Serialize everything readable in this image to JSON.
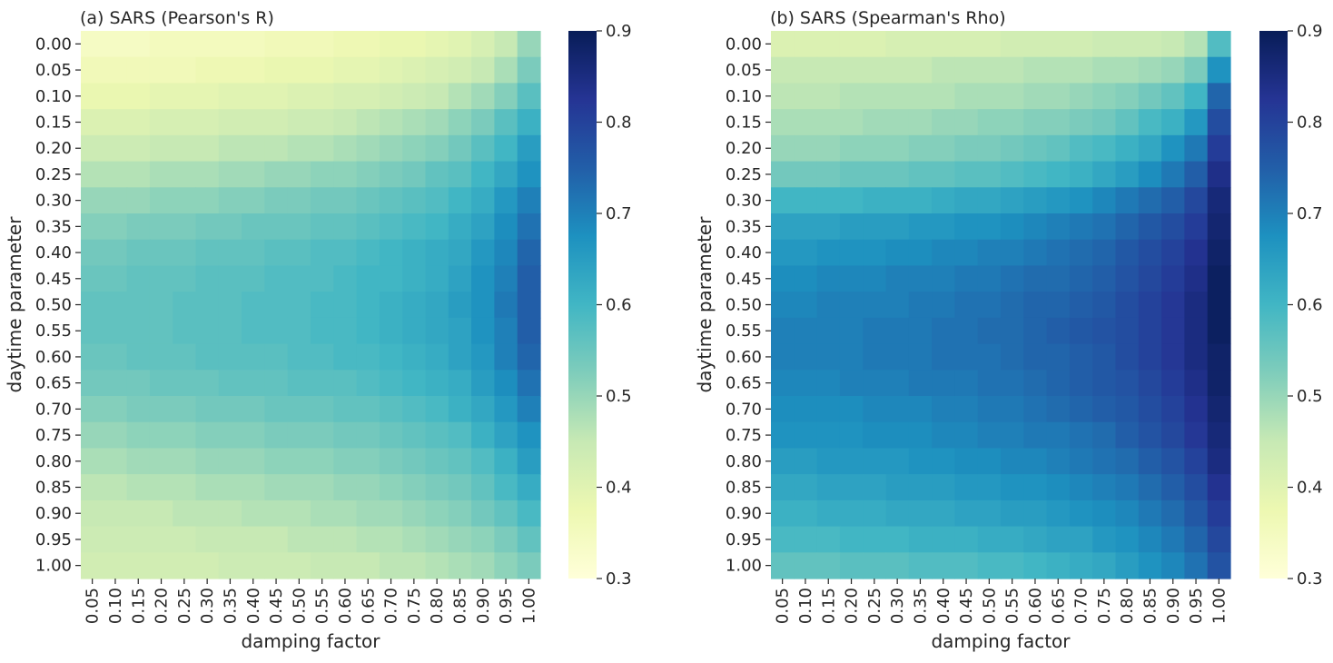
{
  "chart_data": [
    {
      "type": "heatmap",
      "title": "(a) SARS (Pearson's R)",
      "xlabel": "damping factor",
      "ylabel": "daytime parameter",
      "x_categories": [
        "0.05",
        "0.10",
        "0.15",
        "0.20",
        "0.25",
        "0.30",
        "0.35",
        "0.40",
        "0.45",
        "0.50",
        "0.55",
        "0.60",
        "0.65",
        "0.70",
        "0.75",
        "0.80",
        "0.85",
        "0.90",
        "0.95",
        "1.00"
      ],
      "y_categories": [
        "0.00",
        "0.05",
        "0.10",
        "0.15",
        "0.20",
        "0.25",
        "0.30",
        "0.35",
        "0.40",
        "0.45",
        "0.50",
        "0.55",
        "0.60",
        "0.65",
        "0.70",
        "0.75",
        "0.80",
        "0.85",
        "0.90",
        "0.95",
        "1.00"
      ],
      "color_range": [
        0.3,
        0.9
      ],
      "colormap": "YlGnBu",
      "colorbar_ticks": [
        "0.3",
        "0.4",
        "0.5",
        "0.6",
        "0.7",
        "0.8",
        "0.9"
      ],
      "values": [
        [
          0.34,
          0.34,
          0.34,
          0.35,
          0.35,
          0.35,
          0.35,
          0.35,
          0.36,
          0.36,
          0.36,
          0.37,
          0.37,
          0.38,
          0.38,
          0.39,
          0.4,
          0.42,
          0.45,
          0.5
        ],
        [
          0.36,
          0.36,
          0.36,
          0.36,
          0.36,
          0.37,
          0.37,
          0.37,
          0.38,
          0.38,
          0.38,
          0.39,
          0.39,
          0.4,
          0.41,
          0.42,
          0.43,
          0.45,
          0.48,
          0.53
        ],
        [
          0.38,
          0.38,
          0.38,
          0.39,
          0.39,
          0.39,
          0.4,
          0.4,
          0.4,
          0.41,
          0.41,
          0.42,
          0.42,
          0.43,
          0.44,
          0.45,
          0.47,
          0.49,
          0.52,
          0.57
        ],
        [
          0.41,
          0.41,
          0.41,
          0.42,
          0.42,
          0.42,
          0.43,
          0.43,
          0.43,
          0.44,
          0.44,
          0.45,
          0.46,
          0.47,
          0.48,
          0.49,
          0.51,
          0.53,
          0.57,
          0.61
        ],
        [
          0.44,
          0.44,
          0.44,
          0.45,
          0.45,
          0.45,
          0.46,
          0.46,
          0.46,
          0.47,
          0.47,
          0.48,
          0.49,
          0.5,
          0.51,
          0.52,
          0.54,
          0.57,
          0.6,
          0.65
        ],
        [
          0.47,
          0.47,
          0.47,
          0.48,
          0.48,
          0.48,
          0.49,
          0.49,
          0.5,
          0.5,
          0.51,
          0.51,
          0.52,
          0.53,
          0.54,
          0.56,
          0.57,
          0.6,
          0.63,
          0.67
        ],
        [
          0.5,
          0.5,
          0.5,
          0.51,
          0.51,
          0.51,
          0.52,
          0.52,
          0.53,
          0.53,
          0.54,
          0.54,
          0.55,
          0.56,
          0.57,
          0.58,
          0.6,
          0.62,
          0.66,
          0.7
        ],
        [
          0.52,
          0.52,
          0.53,
          0.53,
          0.53,
          0.54,
          0.54,
          0.55,
          0.55,
          0.55,
          0.56,
          0.56,
          0.57,
          0.58,
          0.59,
          0.6,
          0.62,
          0.64,
          0.68,
          0.72
        ],
        [
          0.54,
          0.54,
          0.55,
          0.55,
          0.55,
          0.56,
          0.56,
          0.56,
          0.57,
          0.57,
          0.58,
          0.58,
          0.59,
          0.6,
          0.61,
          0.62,
          0.63,
          0.66,
          0.69,
          0.74
        ],
        [
          0.55,
          0.55,
          0.56,
          0.56,
          0.56,
          0.57,
          0.57,
          0.57,
          0.58,
          0.58,
          0.58,
          0.59,
          0.6,
          0.6,
          0.61,
          0.62,
          0.64,
          0.67,
          0.7,
          0.75
        ],
        [
          0.56,
          0.56,
          0.56,
          0.56,
          0.57,
          0.57,
          0.57,
          0.58,
          0.58,
          0.58,
          0.59,
          0.59,
          0.6,
          0.61,
          0.62,
          0.63,
          0.65,
          0.67,
          0.71,
          0.75
        ],
        [
          0.56,
          0.56,
          0.56,
          0.56,
          0.57,
          0.57,
          0.57,
          0.58,
          0.58,
          0.58,
          0.59,
          0.59,
          0.6,
          0.61,
          0.62,
          0.63,
          0.64,
          0.67,
          0.7,
          0.75
        ],
        [
          0.55,
          0.55,
          0.56,
          0.56,
          0.56,
          0.57,
          0.57,
          0.57,
          0.57,
          0.58,
          0.58,
          0.59,
          0.59,
          0.6,
          0.61,
          0.62,
          0.64,
          0.66,
          0.7,
          0.74
        ],
        [
          0.54,
          0.54,
          0.54,
          0.55,
          0.55,
          0.55,
          0.56,
          0.56,
          0.56,
          0.57,
          0.57,
          0.57,
          0.58,
          0.59,
          0.6,
          0.61,
          0.62,
          0.65,
          0.68,
          0.72
        ],
        [
          0.52,
          0.52,
          0.53,
          0.53,
          0.53,
          0.54,
          0.54,
          0.54,
          0.55,
          0.55,
          0.55,
          0.56,
          0.56,
          0.57,
          0.58,
          0.59,
          0.61,
          0.63,
          0.66,
          0.7
        ],
        [
          0.5,
          0.5,
          0.51,
          0.51,
          0.51,
          0.52,
          0.52,
          0.52,
          0.53,
          0.53,
          0.53,
          0.54,
          0.54,
          0.55,
          0.56,
          0.57,
          0.58,
          0.61,
          0.64,
          0.67
        ],
        [
          0.48,
          0.48,
          0.49,
          0.49,
          0.49,
          0.5,
          0.5,
          0.5,
          0.51,
          0.51,
          0.51,
          0.52,
          0.52,
          0.53,
          0.54,
          0.55,
          0.56,
          0.58,
          0.61,
          0.65
        ],
        [
          0.46,
          0.46,
          0.47,
          0.47,
          0.47,
          0.48,
          0.48,
          0.48,
          0.49,
          0.49,
          0.49,
          0.5,
          0.5,
          0.51,
          0.52,
          0.53,
          0.54,
          0.56,
          0.59,
          0.62
        ],
        [
          0.45,
          0.45,
          0.45,
          0.45,
          0.46,
          0.46,
          0.46,
          0.47,
          0.47,
          0.47,
          0.48,
          0.48,
          0.49,
          0.49,
          0.5,
          0.51,
          0.52,
          0.54,
          0.56,
          0.59
        ],
        [
          0.44,
          0.44,
          0.44,
          0.44,
          0.44,
          0.45,
          0.45,
          0.45,
          0.45,
          0.46,
          0.46,
          0.46,
          0.47,
          0.47,
          0.48,
          0.49,
          0.5,
          0.51,
          0.53,
          0.56
        ],
        [
          0.43,
          0.43,
          0.43,
          0.43,
          0.43,
          0.43,
          0.44,
          0.44,
          0.44,
          0.44,
          0.45,
          0.45,
          0.45,
          0.46,
          0.46,
          0.47,
          0.48,
          0.49,
          0.51,
          0.53
        ]
      ]
    },
    {
      "type": "heatmap",
      "title": "(b) SARS (Spearman's Rho)",
      "xlabel": "damping factor",
      "ylabel": "daytime parameter",
      "x_categories": [
        "0.05",
        "0.10",
        "0.15",
        "0.20",
        "0.25",
        "0.30",
        "0.35",
        "0.40",
        "0.45",
        "0.50",
        "0.55",
        "0.60",
        "0.65",
        "0.70",
        "0.75",
        "0.80",
        "0.85",
        "0.90",
        "0.95",
        "1.00"
      ],
      "y_categories": [
        "0.00",
        "0.05",
        "0.10",
        "0.15",
        "0.20",
        "0.25",
        "0.30",
        "0.35",
        "0.40",
        "0.45",
        "0.50",
        "0.55",
        "0.60",
        "0.65",
        "0.70",
        "0.75",
        "0.80",
        "0.85",
        "0.90",
        "0.95",
        "1.00"
      ],
      "color_range": [
        0.3,
        0.9
      ],
      "colormap": "YlGnBu",
      "colorbar_ticks": [
        "0.3",
        "0.4",
        "0.5",
        "0.6",
        "0.7",
        "0.8",
        "0.9"
      ],
      "values": [
        [
          0.41,
          0.41,
          0.41,
          0.41,
          0.41,
          0.42,
          0.42,
          0.42,
          0.42,
          0.42,
          0.43,
          0.43,
          0.43,
          0.43,
          0.44,
          0.44,
          0.44,
          0.45,
          0.47,
          0.58
        ],
        [
          0.45,
          0.45,
          0.45,
          0.45,
          0.45,
          0.45,
          0.45,
          0.46,
          0.46,
          0.46,
          0.46,
          0.47,
          0.47,
          0.47,
          0.48,
          0.48,
          0.49,
          0.5,
          0.53,
          0.67
        ],
        [
          0.46,
          0.46,
          0.46,
          0.47,
          0.47,
          0.47,
          0.47,
          0.47,
          0.48,
          0.48,
          0.48,
          0.49,
          0.49,
          0.5,
          0.51,
          0.52,
          0.54,
          0.56,
          0.6,
          0.74
        ],
        [
          0.48,
          0.48,
          0.48,
          0.48,
          0.49,
          0.49,
          0.49,
          0.5,
          0.5,
          0.51,
          0.51,
          0.52,
          0.52,
          0.53,
          0.54,
          0.56,
          0.59,
          0.61,
          0.66,
          0.78
        ],
        [
          0.5,
          0.5,
          0.5,
          0.51,
          0.51,
          0.51,
          0.52,
          0.52,
          0.53,
          0.53,
          0.54,
          0.55,
          0.56,
          0.58,
          0.59,
          0.61,
          0.63,
          0.67,
          0.71,
          0.81
        ],
        [
          0.54,
          0.54,
          0.54,
          0.55,
          0.55,
          0.55,
          0.56,
          0.56,
          0.57,
          0.57,
          0.58,
          0.59,
          0.6,
          0.61,
          0.63,
          0.65,
          0.68,
          0.71,
          0.75,
          0.84
        ],
        [
          0.6,
          0.6,
          0.6,
          0.6,
          0.61,
          0.61,
          0.61,
          0.62,
          0.63,
          0.63,
          0.64,
          0.65,
          0.66,
          0.67,
          0.69,
          0.71,
          0.73,
          0.75,
          0.79,
          0.86
        ],
        [
          0.64,
          0.64,
          0.64,
          0.65,
          0.65,
          0.65,
          0.66,
          0.66,
          0.67,
          0.67,
          0.68,
          0.69,
          0.7,
          0.71,
          0.72,
          0.74,
          0.76,
          0.78,
          0.81,
          0.87
        ],
        [
          0.66,
          0.66,
          0.67,
          0.67,
          0.67,
          0.68,
          0.68,
          0.69,
          0.69,
          0.7,
          0.7,
          0.71,
          0.72,
          0.73,
          0.74,
          0.76,
          0.78,
          0.8,
          0.83,
          0.88
        ],
        [
          0.68,
          0.68,
          0.69,
          0.69,
          0.69,
          0.7,
          0.7,
          0.7,
          0.71,
          0.71,
          0.72,
          0.73,
          0.73,
          0.74,
          0.75,
          0.77,
          0.79,
          0.81,
          0.84,
          0.89
        ],
        [
          0.69,
          0.69,
          0.7,
          0.7,
          0.7,
          0.7,
          0.71,
          0.71,
          0.72,
          0.72,
          0.73,
          0.74,
          0.74,
          0.75,
          0.76,
          0.78,
          0.8,
          0.82,
          0.85,
          0.89
        ],
        [
          0.7,
          0.7,
          0.7,
          0.7,
          0.71,
          0.71,
          0.71,
          0.72,
          0.72,
          0.73,
          0.73,
          0.74,
          0.75,
          0.76,
          0.77,
          0.78,
          0.8,
          0.82,
          0.85,
          0.89
        ],
        [
          0.7,
          0.7,
          0.7,
          0.7,
          0.71,
          0.71,
          0.71,
          0.72,
          0.72,
          0.72,
          0.73,
          0.74,
          0.74,
          0.75,
          0.76,
          0.78,
          0.8,
          0.82,
          0.85,
          0.88
        ],
        [
          0.69,
          0.69,
          0.69,
          0.7,
          0.7,
          0.7,
          0.71,
          0.71,
          0.71,
          0.72,
          0.72,
          0.73,
          0.74,
          0.75,
          0.76,
          0.77,
          0.79,
          0.81,
          0.84,
          0.88
        ],
        [
          0.68,
          0.68,
          0.68,
          0.68,
          0.69,
          0.69,
          0.69,
          0.7,
          0.7,
          0.71,
          0.71,
          0.72,
          0.73,
          0.74,
          0.75,
          0.76,
          0.78,
          0.8,
          0.83,
          0.87
        ],
        [
          0.67,
          0.67,
          0.67,
          0.67,
          0.68,
          0.68,
          0.68,
          0.69,
          0.69,
          0.7,
          0.7,
          0.71,
          0.71,
          0.72,
          0.73,
          0.75,
          0.77,
          0.79,
          0.82,
          0.86
        ],
        [
          0.65,
          0.65,
          0.66,
          0.66,
          0.66,
          0.66,
          0.67,
          0.67,
          0.68,
          0.68,
          0.69,
          0.69,
          0.7,
          0.71,
          0.72,
          0.73,
          0.75,
          0.77,
          0.8,
          0.85
        ],
        [
          0.63,
          0.63,
          0.64,
          0.64,
          0.64,
          0.65,
          0.65,
          0.65,
          0.66,
          0.66,
          0.67,
          0.67,
          0.68,
          0.69,
          0.7,
          0.71,
          0.73,
          0.75,
          0.78,
          0.83
        ],
        [
          0.61,
          0.61,
          0.62,
          0.62,
          0.62,
          0.63,
          0.63,
          0.63,
          0.64,
          0.64,
          0.65,
          0.65,
          0.66,
          0.67,
          0.68,
          0.69,
          0.71,
          0.73,
          0.76,
          0.81
        ],
        [
          0.59,
          0.59,
          0.59,
          0.6,
          0.6,
          0.6,
          0.61,
          0.61,
          0.61,
          0.62,
          0.62,
          0.63,
          0.64,
          0.64,
          0.66,
          0.67,
          0.69,
          0.71,
          0.74,
          0.79
        ],
        [
          0.56,
          0.56,
          0.56,
          0.57,
          0.57,
          0.57,
          0.58,
          0.58,
          0.58,
          0.59,
          0.59,
          0.6,
          0.61,
          0.62,
          0.63,
          0.65,
          0.67,
          0.69,
          0.72,
          0.77
        ]
      ]
    }
  ]
}
